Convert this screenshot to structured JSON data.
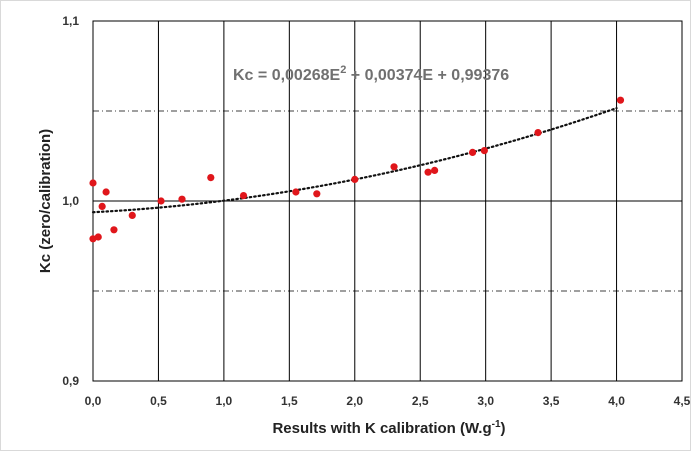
{
  "chart_data": {
    "type": "scatter",
    "title": "",
    "xlabel": "Results with K calibration (W.g",
    "xlabel_superscript": "-1",
    "xlabel_suffix": ")",
    "ylabel": "Kc (zero/calibration)",
    "xlim": [
      0,
      4.5
    ],
    "ylim": [
      0.9,
      1.1
    ],
    "x_ticks": [
      "0,0",
      "0,5",
      "1,0",
      "1,5",
      "2,0",
      "2,5",
      "3,0",
      "3,5",
      "4,0",
      "4,5"
    ],
    "x_tick_values": [
      0,
      0.5,
      1.0,
      1.5,
      2.0,
      2.5,
      3.0,
      3.5,
      4.0,
      4.5
    ],
    "y_ticks": [
      "0,9",
      "1,0",
      "1,1"
    ],
    "y_tick_values": [
      0.9,
      1.0,
      1.1
    ],
    "grid": true,
    "marker_color": "#e0161b",
    "series": [
      {
        "points": [
          {
            "x": 0.0,
            "y": 0.979
          },
          {
            "x": 0.0,
            "y": 1.01
          },
          {
            "x": 0.04,
            "y": 0.98
          },
          {
            "x": 0.07,
            "y": 0.997
          },
          {
            "x": 0.1,
            "y": 1.005
          },
          {
            "x": 0.16,
            "y": 0.984
          },
          {
            "x": 0.3,
            "y": 0.992
          },
          {
            "x": 0.52,
            "y": 1.0
          },
          {
            "x": 0.68,
            "y": 1.001
          },
          {
            "x": 0.9,
            "y": 1.013
          },
          {
            "x": 1.15,
            "y": 1.003
          },
          {
            "x": 1.55,
            "y": 1.005
          },
          {
            "x": 1.71,
            "y": 1.004
          },
          {
            "x": 2.0,
            "y": 1.012
          },
          {
            "x": 2.3,
            "y": 1.019
          },
          {
            "x": 2.56,
            "y": 1.016
          },
          {
            "x": 2.61,
            "y": 1.017
          },
          {
            "x": 2.9,
            "y": 1.027
          },
          {
            "x": 2.99,
            "y": 1.028
          },
          {
            "x": 3.4,
            "y": 1.038
          },
          {
            "x": 4.03,
            "y": 1.056
          }
        ]
      }
    ],
    "trendline": {
      "type": "polynomial",
      "style": "dotted",
      "coefficients": {
        "a": 0.00268,
        "b": 0.00374,
        "c": 0.99376
      },
      "x_range": [
        0,
        4.0
      ],
      "equation_prefix": "Kc = 0,00268E",
      "equation_superscript": "2",
      "equation_suffix": " + 0,00374E + 0,99376"
    }
  }
}
